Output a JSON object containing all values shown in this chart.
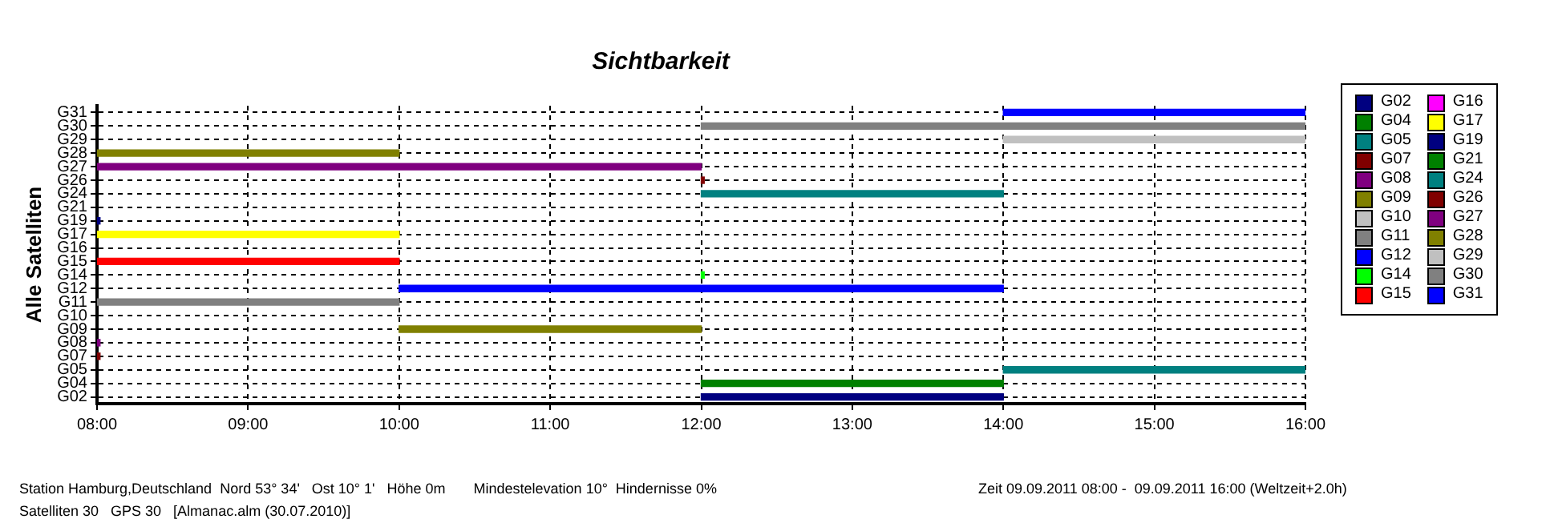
{
  "chart_data": {
    "type": "bar",
    "orientation": "horizontal",
    "title": "Sichtbarkeit",
    "ylabel": "Alle Satelliten",
    "categories": [
      "G31",
      "G30",
      "G29",
      "G28",
      "G27",
      "G26",
      "G24",
      "G21",
      "G19",
      "G17",
      "G16",
      "G15",
      "G14",
      "G12",
      "G11",
      "G10",
      "G09",
      "G08",
      "G07",
      "G05",
      "G04",
      "G02"
    ],
    "xlim": [
      8,
      16
    ],
    "xticks": [
      {
        "value": 8,
        "label": "08:00"
      },
      {
        "value": 9,
        "label": "09:00"
      },
      {
        "value": 10,
        "label": "10:00"
      },
      {
        "value": 11,
        "label": "11:00"
      },
      {
        "value": 12,
        "label": "12:00"
      },
      {
        "value": 13,
        "label": "13:00"
      },
      {
        "value": 14,
        "label": "14:00"
      },
      {
        "value": 15,
        "label": "15:00"
      },
      {
        "value": 16,
        "label": "16:00"
      }
    ],
    "grid": true,
    "legend": "right",
    "series": [
      {
        "name": "G02",
        "color": "#000080",
        "values": [
          null,
          null,
          null,
          null,
          null,
          null,
          null,
          null,
          null,
          null,
          null,
          null,
          null,
          null,
          null,
          null,
          null,
          null,
          null,
          null,
          null,
          2
        ],
        "base": [
          null,
          null,
          null,
          null,
          null,
          null,
          null,
          null,
          null,
          null,
          null,
          null,
          null,
          null,
          null,
          null,
          null,
          null,
          null,
          null,
          null,
          12
        ]
      },
      {
        "name": "G04",
        "color": "#008000",
        "values": [
          null,
          null,
          null,
          null,
          null,
          null,
          null,
          null,
          null,
          null,
          null,
          null,
          null,
          null,
          null,
          null,
          null,
          null,
          null,
          null,
          2,
          null
        ],
        "base": [
          null,
          null,
          null,
          null,
          null,
          null,
          null,
          null,
          null,
          null,
          null,
          null,
          null,
          null,
          null,
          null,
          null,
          null,
          null,
          null,
          12,
          null
        ]
      },
      {
        "name": "G05",
        "color": "#008080",
        "values": [
          null,
          null,
          null,
          null,
          null,
          null,
          null,
          null,
          null,
          null,
          null,
          null,
          null,
          null,
          null,
          null,
          null,
          null,
          null,
          2,
          null,
          null
        ],
        "base": [
          null,
          null,
          null,
          null,
          null,
          null,
          null,
          null,
          null,
          null,
          null,
          null,
          null,
          null,
          null,
          null,
          null,
          null,
          null,
          14,
          null,
          null
        ]
      },
      {
        "name": "G07",
        "color": "#800000",
        "values": [
          null,
          null,
          null,
          null,
          null,
          null,
          null,
          null,
          null,
          null,
          null,
          null,
          null,
          null,
          null,
          null,
          null,
          null,
          0.02,
          null,
          null,
          null
        ],
        "base": [
          null,
          null,
          null,
          null,
          null,
          null,
          null,
          null,
          null,
          null,
          null,
          null,
          null,
          null,
          null,
          null,
          null,
          null,
          8,
          null,
          null,
          null
        ]
      },
      {
        "name": "G08",
        "color": "#800080",
        "values": [
          null,
          null,
          null,
          null,
          null,
          null,
          null,
          null,
          null,
          null,
          null,
          null,
          null,
          null,
          null,
          null,
          null,
          0.02,
          null,
          null,
          null,
          null
        ],
        "base": [
          null,
          null,
          null,
          null,
          null,
          null,
          null,
          null,
          null,
          null,
          null,
          null,
          null,
          null,
          null,
          null,
          null,
          8,
          null,
          null,
          null,
          null
        ]
      },
      {
        "name": "G09",
        "color": "#808000",
        "values": [
          null,
          null,
          null,
          null,
          null,
          null,
          null,
          null,
          null,
          null,
          null,
          null,
          null,
          null,
          null,
          null,
          2,
          null,
          null,
          null,
          null,
          null
        ],
        "base": [
          null,
          null,
          null,
          null,
          null,
          null,
          null,
          null,
          null,
          null,
          null,
          null,
          null,
          null,
          null,
          null,
          10,
          null,
          null,
          null,
          null,
          null
        ]
      },
      {
        "name": "G10",
        "color": "#c0c0c0",
        "values": [
          null,
          null,
          null,
          null,
          null,
          null,
          null,
          null,
          null,
          null,
          null,
          null,
          null,
          null,
          null,
          null,
          null,
          null,
          null,
          null,
          null,
          null
        ],
        "base": [
          null,
          null,
          null,
          null,
          null,
          null,
          null,
          null,
          null,
          null,
          null,
          null,
          null,
          null,
          null,
          null,
          null,
          null,
          null,
          null,
          null,
          null
        ]
      },
      {
        "name": "G11",
        "color": "#808080",
        "values": [
          null,
          null,
          null,
          null,
          null,
          null,
          null,
          null,
          null,
          null,
          null,
          null,
          null,
          null,
          2,
          null,
          null,
          null,
          null,
          null,
          null,
          null
        ],
        "base": [
          null,
          null,
          null,
          null,
          null,
          null,
          null,
          null,
          null,
          null,
          null,
          null,
          null,
          null,
          8,
          null,
          null,
          null,
          null,
          null,
          null,
          null
        ]
      },
      {
        "name": "G12",
        "color": "#0000ff",
        "values": [
          null,
          null,
          null,
          null,
          null,
          null,
          null,
          null,
          null,
          null,
          null,
          null,
          null,
          4,
          null,
          null,
          null,
          null,
          null,
          null,
          null,
          null
        ],
        "base": [
          null,
          null,
          null,
          null,
          null,
          null,
          null,
          null,
          null,
          null,
          null,
          null,
          null,
          10,
          null,
          null,
          null,
          null,
          null,
          null,
          null,
          null
        ]
      },
      {
        "name": "G14",
        "color": "#00ff00",
        "values": [
          null,
          null,
          null,
          null,
          null,
          null,
          null,
          null,
          null,
          null,
          null,
          null,
          0.02,
          null,
          null,
          null,
          null,
          null,
          null,
          null,
          null,
          null
        ],
        "base": [
          null,
          null,
          null,
          null,
          null,
          null,
          null,
          null,
          null,
          null,
          null,
          null,
          12,
          null,
          null,
          null,
          null,
          null,
          null,
          null,
          null,
          null
        ]
      },
      {
        "name": "G15",
        "color": "#ff0000",
        "values": [
          null,
          null,
          null,
          null,
          null,
          null,
          null,
          null,
          null,
          null,
          null,
          2,
          null,
          null,
          null,
          null,
          null,
          null,
          null,
          null,
          null,
          null
        ],
        "base": [
          null,
          null,
          null,
          null,
          null,
          null,
          null,
          null,
          null,
          null,
          null,
          8,
          null,
          null,
          null,
          null,
          null,
          null,
          null,
          null,
          null,
          null
        ]
      },
      {
        "name": "G16",
        "color": "#ff00ff",
        "values": [
          null,
          null,
          null,
          null,
          null,
          null,
          null,
          null,
          null,
          null,
          null,
          null,
          null,
          null,
          null,
          null,
          null,
          null,
          null,
          null,
          null,
          null
        ],
        "base": [
          null,
          null,
          null,
          null,
          null,
          null,
          null,
          null,
          null,
          null,
          null,
          null,
          null,
          null,
          null,
          null,
          null,
          null,
          null,
          null,
          null,
          null
        ]
      },
      {
        "name": "G17",
        "color": "#ffff00",
        "values": [
          null,
          null,
          null,
          null,
          null,
          null,
          null,
          null,
          null,
          2,
          null,
          null,
          null,
          null,
          null,
          null,
          null,
          null,
          null,
          null,
          null,
          null
        ],
        "base": [
          null,
          null,
          null,
          null,
          null,
          null,
          null,
          null,
          null,
          8,
          null,
          null,
          null,
          null,
          null,
          null,
          null,
          null,
          null,
          null,
          null,
          null
        ]
      },
      {
        "name": "G19",
        "color": "#000080",
        "values": [
          null,
          null,
          null,
          null,
          null,
          null,
          null,
          null,
          0.02,
          null,
          null,
          null,
          null,
          null,
          null,
          null,
          null,
          null,
          null,
          null,
          null,
          null
        ],
        "base": [
          null,
          null,
          null,
          null,
          null,
          null,
          null,
          null,
          8,
          null,
          null,
          null,
          null,
          null,
          null,
          null,
          null,
          null,
          null,
          null,
          null,
          null
        ]
      },
      {
        "name": "G21",
        "color": "#008000",
        "values": [
          null,
          null,
          null,
          null,
          null,
          null,
          null,
          null,
          null,
          null,
          null,
          null,
          null,
          null,
          null,
          null,
          null,
          null,
          null,
          null,
          null,
          null
        ],
        "base": [
          null,
          null,
          null,
          null,
          null,
          null,
          null,
          null,
          null,
          null,
          null,
          null,
          null,
          null,
          null,
          null,
          null,
          null,
          null,
          null,
          null,
          null
        ]
      },
      {
        "name": "G24",
        "color": "#008080",
        "values": [
          null,
          null,
          null,
          null,
          null,
          null,
          2,
          null,
          null,
          null,
          null,
          null,
          null,
          null,
          null,
          null,
          null,
          null,
          null,
          null,
          null,
          null
        ],
        "base": [
          null,
          null,
          null,
          null,
          null,
          null,
          12,
          null,
          null,
          null,
          null,
          null,
          null,
          null,
          null,
          null,
          null,
          null,
          null,
          null,
          null,
          null
        ]
      },
      {
        "name": "G26",
        "color": "#800000",
        "values": [
          null,
          null,
          null,
          null,
          null,
          0.02,
          null,
          null,
          null,
          null,
          null,
          null,
          null,
          null,
          null,
          null,
          null,
          null,
          null,
          null,
          null,
          null
        ],
        "base": [
          null,
          null,
          null,
          null,
          null,
          12,
          null,
          null,
          null,
          null,
          null,
          null,
          null,
          null,
          null,
          null,
          null,
          null,
          null,
          null,
          null,
          null
        ]
      },
      {
        "name": "G27",
        "color": "#800080",
        "values": [
          null,
          null,
          null,
          null,
          4,
          null,
          null,
          null,
          null,
          null,
          null,
          null,
          null,
          null,
          null,
          null,
          null,
          null,
          null,
          null,
          null,
          null
        ],
        "base": [
          null,
          null,
          null,
          null,
          8,
          null,
          null,
          null,
          null,
          null,
          null,
          null,
          null,
          null,
          null,
          null,
          null,
          null,
          null,
          null,
          null,
          null
        ]
      },
      {
        "name": "G28",
        "color": "#808000",
        "values": [
          null,
          null,
          null,
          2,
          null,
          null,
          null,
          null,
          null,
          null,
          null,
          null,
          null,
          null,
          null,
          null,
          null,
          null,
          null,
          null,
          null,
          null
        ],
        "base": [
          null,
          null,
          null,
          8,
          null,
          null,
          null,
          null,
          null,
          null,
          null,
          null,
          null,
          null,
          null,
          null,
          null,
          null,
          null,
          null,
          null,
          null
        ]
      },
      {
        "name": "G29",
        "color": "#c0c0c0",
        "values": [
          null,
          null,
          2,
          null,
          null,
          null,
          null,
          null,
          null,
          null,
          null,
          null,
          null,
          null,
          null,
          null,
          null,
          null,
          null,
          null,
          null,
          null
        ],
        "base": [
          null,
          null,
          14,
          null,
          null,
          null,
          null,
          null,
          null,
          null,
          null,
          null,
          null,
          null,
          null,
          null,
          null,
          null,
          null,
          null,
          null,
          null
        ]
      },
      {
        "name": "G30",
        "color": "#808080",
        "values": [
          null,
          4,
          null,
          null,
          null,
          null,
          null,
          null,
          null,
          null,
          null,
          null,
          null,
          null,
          null,
          null,
          null,
          null,
          null,
          null,
          null,
          null
        ],
        "base": [
          null,
          12,
          null,
          null,
          null,
          null,
          null,
          null,
          null,
          null,
          null,
          null,
          null,
          null,
          null,
          null,
          null,
          null,
          null,
          null,
          null,
          null
        ]
      },
      {
        "name": "G31",
        "color": "#0000ff",
        "values": [
          2,
          null,
          null,
          null,
          null,
          null,
          null,
          null,
          null,
          null,
          null,
          null,
          null,
          null,
          null,
          null,
          null,
          null,
          null,
          null,
          null,
          null
        ],
        "base": [
          14,
          null,
          null,
          null,
          null,
          null,
          null,
          null,
          null,
          null,
          null,
          null,
          null,
          null,
          null,
          null,
          null,
          null,
          null,
          null,
          null,
          null
        ]
      }
    ],
    "annotations": [
      "Station Hamburg,Deutschland  Nord 53° 34'   Ost 10° 1'   Höhe 0m       Mindestelevation 10°  Hindernisse 0%",
      "Zeit 09.09.2011 08:00 -  09.09.2011 16:00 (Weltzeit+2.0h)",
      "Satelliten 30   GPS 30   [Almanac.alm (30.07.2010)]"
    ]
  }
}
